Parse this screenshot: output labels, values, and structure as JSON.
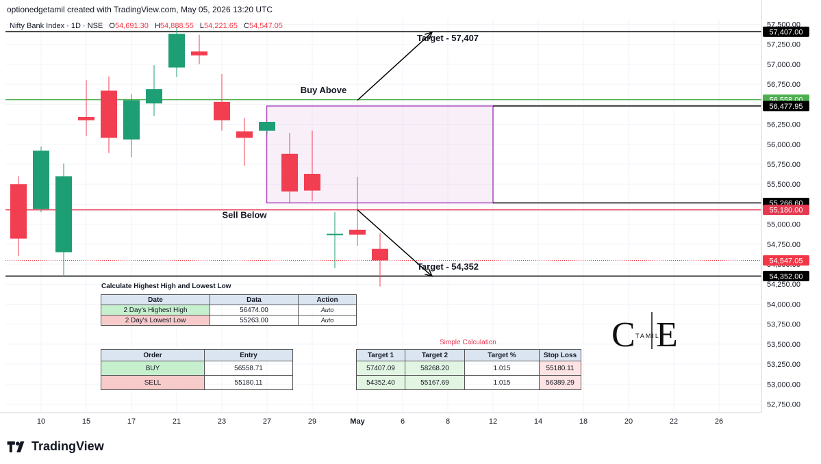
{
  "header": {
    "created_by": "optionedgetamil created with TradingView.com, May 05, 2026 13:20 UTC"
  },
  "symbol": {
    "title": "Nifty Bank Index · 1D · NSE",
    "o_label": "O",
    "o": "54,691.30",
    "h_label": "H",
    "h": "54,888.55",
    "l_label": "L",
    "l": "54,221.65",
    "c_label": "C",
    "c": "54,547.05"
  },
  "colors": {
    "up": "#26a69a",
    "down": "#f23645",
    "buy_line": "#4caf50",
    "sell_line": "#e53950",
    "box": "#ab47bc",
    "up_candle": "#1e9e74",
    "down_candle": "#f23e51"
  },
  "chart_data": {
    "type": "candlestick",
    "ylim": [
      52600,
      57550
    ],
    "y_ticks": [
      52750,
      53000,
      53250,
      53500,
      53750,
      54000,
      54250,
      54500,
      54750,
      55000,
      55250,
      55500,
      55750,
      56000,
      56250,
      56500,
      56750,
      57000,
      57250,
      57500
    ],
    "y_tick_labels": [
      "52,750.00",
      "53,000.00",
      "53,250.00",
      "53,500.00",
      "53,750.00",
      "54,000.00",
      "54,250.00",
      "54,500.00",
      "54,750.00",
      "55,000.00",
      "55,250.00",
      "55,500.00",
      "55,750.00",
      "56,000.00",
      "56,250.00",
      "56,500.00",
      "56,750.00",
      "57,000.00",
      "57,250.00",
      "57,500.00"
    ],
    "x_ticks": [
      {
        "i": 1,
        "label": "10"
      },
      {
        "i": 3,
        "label": "15"
      },
      {
        "i": 5,
        "label": "17"
      },
      {
        "i": 7,
        "label": "21"
      },
      {
        "i": 9,
        "label": "23"
      },
      {
        "i": 11,
        "label": "27"
      },
      {
        "i": 13,
        "label": "29"
      },
      {
        "i": 15,
        "label": "May",
        "bold": true
      },
      {
        "i": 17,
        "label": "6"
      },
      {
        "i": 19,
        "label": "8"
      },
      {
        "i": 21,
        "label": "12"
      },
      {
        "i": 23,
        "label": "14"
      },
      {
        "i": 25,
        "label": "18"
      },
      {
        "i": 27,
        "label": "20"
      },
      {
        "i": 29,
        "label": "22"
      },
      {
        "i": 31,
        "label": "26"
      }
    ],
    "candles": [
      {
        "i": 0,
        "o": 55500,
        "h": 55600,
        "l": 54600,
        "c": 54820
      },
      {
        "i": 1,
        "o": 55190,
        "h": 55970,
        "l": 55150,
        "c": 55920
      },
      {
        "i": 2,
        "o": 54650,
        "h": 55760,
        "l": 54350,
        "c": 55600
      },
      {
        "i": 3,
        "o": 56340,
        "h": 56800,
        "l": 56100,
        "c": 56300
      },
      {
        "i": 4,
        "o": 56670,
        "h": 56850,
        "l": 55890,
        "c": 56080
      },
      {
        "i": 5,
        "o": 56060,
        "h": 56630,
        "l": 55840,
        "c": 56550
      },
      {
        "i": 6,
        "o": 56510,
        "h": 56990,
        "l": 56350,
        "c": 56690
      },
      {
        "i": 7,
        "o": 56960,
        "h": 57470,
        "l": 56840,
        "c": 57380
      },
      {
        "i": 8,
        "o": 57160,
        "h": 57370,
        "l": 57000,
        "c": 57110
      },
      {
        "i": 9,
        "o": 56530,
        "h": 56880,
        "l": 56170,
        "c": 56300
      },
      {
        "i": 10,
        "o": 56160,
        "h": 56330,
        "l": 55730,
        "c": 56080
      },
      {
        "i": 11,
        "o": 56170,
        "h": 56260,
        "l": 56120,
        "c": 56280
      },
      {
        "i": 12,
        "o": 55880,
        "h": 56140,
        "l": 55260,
        "c": 55410
      },
      {
        "i": 13,
        "o": 55630,
        "h": 56170,
        "l": 55290,
        "c": 55420
      },
      {
        "i": 14,
        "o": 54880,
        "h": 55150,
        "l": 54450,
        "c": 54880
      },
      {
        "i": 15,
        "o": 54930,
        "h": 55590,
        "l": 54730,
        "c": 54870
      },
      {
        "i": 16,
        "o": 54691.3,
        "h": 54888.55,
        "l": 54221.65,
        "c": 54547.05
      }
    ],
    "levels": [
      {
        "name": "target-high",
        "y": 57407,
        "label": "57,407.00",
        "color": "#000000",
        "text_color": "#ffffff"
      },
      {
        "name": "buy-above",
        "y": 56558,
        "label": "56,558.00",
        "color": "#4caf50",
        "text_color": "#ffffff"
      },
      {
        "name": "box-top",
        "y": 56477.95,
        "label": "56,477.95",
        "color": "#000000",
        "text_color": "#ffffff"
      },
      {
        "name": "box-bottom",
        "y": 55266.6,
        "label": "55,266.60",
        "color": "#000000",
        "text_color": "#ffffff"
      },
      {
        "name": "sell-below",
        "y": 55180,
        "label": "55,180.00",
        "color": "#e53950",
        "text_color": "#ffffff"
      },
      {
        "name": "last-price",
        "y": 54547.05,
        "label": "54,547.05",
        "color": "#f23645",
        "text_color": "#ffffff"
      },
      {
        "name": "target-low",
        "y": 54352,
        "label": "54,352.00",
        "color": "#000000",
        "text_color": "#ffffff"
      }
    ],
    "box": {
      "i_start": 11,
      "i_end": 21,
      "y_top": 56477.95,
      "y_bottom": 55266.6
    },
    "annotations": [
      {
        "name": "target-high-label",
        "text": "Target - 57,407",
        "i": 19,
        "y": 57290
      },
      {
        "name": "buy-above-label",
        "text": "Buy Above",
        "i": 13.5,
        "y": 56640
      },
      {
        "name": "sell-below-label",
        "text": "Sell Below",
        "i": 10,
        "y": 55080
      },
      {
        "name": "target-low-label",
        "text": "Target - 54,352",
        "i": 19,
        "y": 54430
      }
    ],
    "arrows": [
      {
        "name": "buy-arrow",
        "i1": 15,
        "y1": 56550,
        "i2": 18.3,
        "y2": 57400
      },
      {
        "name": "sell-arrow",
        "i1": 15,
        "y1": 55180,
        "i2": 18.3,
        "y2": 54350
      }
    ]
  },
  "hhll_table": {
    "title": "Calculate Highest High and Lowest Low",
    "headers": [
      "Date",
      "Data",
      "Action"
    ],
    "rows": [
      [
        "2 Day's Highest High",
        "56474.00",
        "Auto"
      ],
      [
        "2 Day's Lowest Low",
        "55263.00",
        "Auto"
      ]
    ]
  },
  "order_table": {
    "headers": [
      "Order",
      "Entry"
    ],
    "rows": [
      [
        "BUY",
        "56558.71"
      ],
      [
        "SELL",
        "55180.11"
      ]
    ]
  },
  "calc_table": {
    "title": "Simple Calculation",
    "headers": [
      "Target 1",
      "Target 2",
      "Target %",
      "Stop Loss"
    ],
    "rows": [
      [
        "57407.09",
        "58268.20",
        "1.015",
        "55180.11"
      ],
      [
        "54352.40",
        "55167.69",
        "1.015",
        "56389.29"
      ]
    ]
  },
  "watermark": {
    "left": "C",
    "right": "E",
    "middle": "TAMIL"
  },
  "footer": {
    "brand": "TradingView"
  }
}
